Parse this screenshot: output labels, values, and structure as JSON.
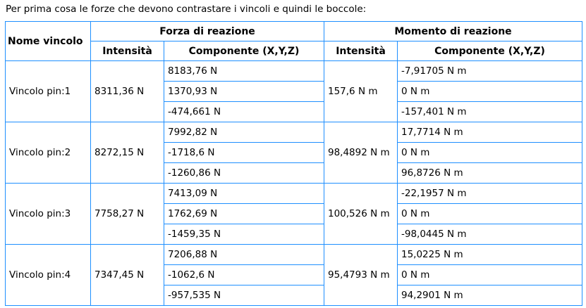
{
  "title": "Per prima cosa le forze che devono contrastare i vincoli e quindi le boccole:",
  "colors": {
    "table_border": "#1e8fff",
    "text": "#000000",
    "background": "#ffffff"
  },
  "table": {
    "header": {
      "nome_vincolo": "Nome vincolo",
      "forza_group": "Forza di reazione",
      "momento_group": "Momento di reazione",
      "forza_intensita": "Intensità",
      "forza_componente": "Componente (X,Y,Z)",
      "momento_intensita": "Intensità",
      "momento_componente": "Componente (X,Y,Z)"
    },
    "rows": [
      {
        "name": "Vincolo pin:1",
        "force_intensity": "8311,36 N",
        "force_components": [
          "8183,76 N",
          "1370,93 N",
          "-474,661 N"
        ],
        "moment_intensity": "157,6 N m",
        "moment_components": [
          "-7,91705 N m",
          "0 N m",
          "-157,401 N m"
        ]
      },
      {
        "name": "Vincolo pin:2",
        "force_intensity": "8272,15 N",
        "force_components": [
          "7992,82 N",
          "-1718,6 N",
          "-1260,86 N"
        ],
        "moment_intensity": "98,4892 N m",
        "moment_components": [
          "17,7714 N m",
          "0 N m",
          "96,8726 N m"
        ]
      },
      {
        "name": "Vincolo pin:3",
        "force_intensity": "7758,27 N",
        "force_components": [
          "7413,09 N",
          "1762,69 N",
          "-1459,35 N"
        ],
        "moment_intensity": "100,526 N m",
        "moment_components": [
          "-22,1957 N m",
          "0 N m",
          "-98,0445 N m"
        ]
      },
      {
        "name": "Vincolo pin:4",
        "force_intensity": "7347,45 N",
        "force_components": [
          "7206,88 N",
          "-1062,6 N",
          "-957,535 N"
        ],
        "moment_intensity": "95,4793 N m",
        "moment_components": [
          "15,0225 N m",
          "0 N m",
          "94,2901 N m"
        ]
      }
    ]
  }
}
